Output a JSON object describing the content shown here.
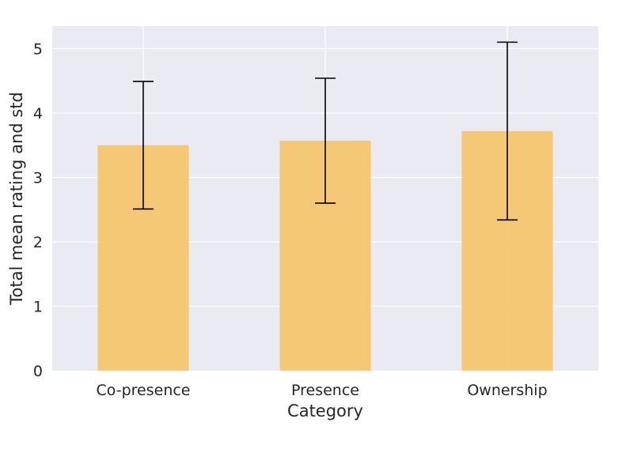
{
  "chart_data": {
    "type": "bar",
    "title": "",
    "xlabel": "Category",
    "ylabel": "Total mean rating and std",
    "categories": [
      "Co-presence",
      "Presence",
      "Ownership"
    ],
    "values": [
      3.5,
      3.57,
      3.72
    ],
    "error": [
      0.99,
      0.97,
      1.38
    ],
    "ylim": [
      0,
      5.35
    ],
    "yticks": [
      0,
      1,
      2,
      3,
      4,
      5
    ],
    "grid": true,
    "legend": "none",
    "colors": {
      "background": "#eaeaf2",
      "grid": "#ffffff",
      "bar": "#f5c46b",
      "error": "#000000",
      "text": "#262626"
    }
  }
}
